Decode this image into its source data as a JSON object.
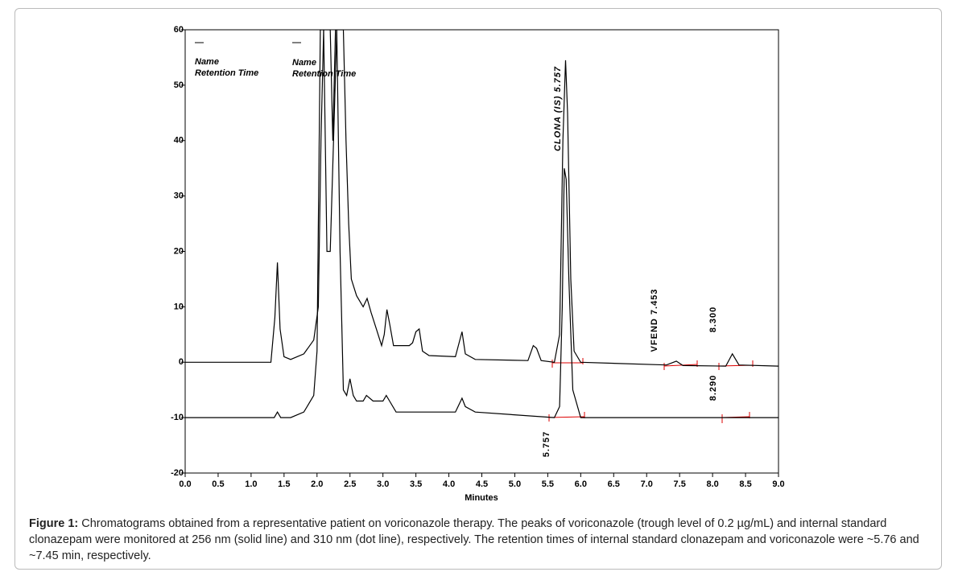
{
  "chart_data": {
    "type": "line",
    "xlabel": "Minutes",
    "xlim": [
      0,
      9
    ],
    "ylim": [
      -20,
      60
    ],
    "xticks": [
      {
        "value": 0,
        "label": "0.0"
      },
      0.5,
      {
        "value": 1,
        "label": "1.0"
      },
      1.5,
      {
        "value": 2,
        "label": "2.0"
      },
      2.5,
      {
        "value": 3,
        "label": "3.0"
      },
      3.5,
      {
        "value": 4,
        "label": "4.0"
      },
      4.5,
      {
        "value": 5,
        "label": "5.0"
      },
      5.5,
      {
        "value": 6,
        "label": "6.0"
      },
      6.5,
      {
        "value": 7,
        "label": "7.0"
      },
      7.5,
      {
        "value": 8,
        "label": "8.0"
      },
      8.5,
      {
        "value": 9,
        "label": "9.0"
      }
    ],
    "yticks": [
      -20,
      -10,
      0,
      10,
      20,
      30,
      40,
      50,
      60
    ],
    "series": [
      {
        "color": "#000000",
        "x": [
          0,
          1.3,
          1.36,
          1.4,
          1.44,
          1.5,
          1.6,
          1.8,
          1.95,
          2.02,
          2.06,
          2.1,
          2.14,
          2.2,
          2.24,
          2.28,
          2.32,
          2.4,
          2.44,
          2.48,
          2.52,
          2.6,
          2.7,
          2.76,
          2.82,
          2.9,
          2.98,
          3.02,
          3.06,
          3.1,
          3.16,
          3.3,
          3.4,
          3.45,
          3.5,
          3.55,
          3.6,
          3.7,
          4.1,
          4.2,
          4.25,
          4.4,
          5.2,
          5.28,
          5.33,
          5.4,
          5.6,
          5.68,
          5.73,
          5.77,
          5.8,
          5.85,
          5.9,
          6.0,
          7.3,
          7.45,
          7.55,
          8.2,
          8.3,
          8.4,
          9.0
        ],
        "values": [
          0,
          0,
          8,
          18,
          6,
          1,
          0.5,
          1.5,
          4,
          10,
          40,
          60,
          60,
          60,
          40,
          60,
          60,
          60,
          40,
          25,
          15,
          12,
          10,
          11.5,
          9,
          6,
          3,
          5,
          9.5,
          7,
          3,
          3,
          3,
          3.5,
          5.5,
          6,
          2,
          1.2,
          1,
          5.5,
          1.5,
          0.5,
          0.3,
          3,
          2.5,
          0.3,
          0,
          5,
          40,
          54.5,
          45,
          15,
          2,
          0,
          -0.5,
          0.2,
          -0.6,
          -0.7,
          1.5,
          -0.5,
          -0.7
        ]
      },
      {
        "color": "#000000",
        "x": [
          0,
          1.35,
          1.4,
          1.45,
          1.6,
          1.8,
          1.95,
          2.0,
          2.05,
          2.1,
          2.15,
          2.2,
          2.25,
          2.3,
          2.35,
          2.4,
          2.45,
          2.5,
          2.55,
          2.6,
          2.7,
          2.75,
          2.85,
          3.0,
          3.05,
          3.1,
          3.2,
          4.1,
          4.2,
          4.25,
          4.4,
          5.6,
          5.68,
          5.72,
          5.75,
          5.78,
          5.82,
          5.88,
          6.0,
          9.0
        ],
        "values": [
          -10,
          -10,
          -9,
          -10,
          -10,
          -9,
          -6,
          2,
          60,
          60,
          20,
          20,
          40,
          60,
          20,
          -5,
          -6,
          -3,
          -6,
          -7,
          -7,
          -6,
          -7,
          -7,
          -6,
          -7,
          -9,
          -9,
          -6.5,
          -8,
          -9,
          -10,
          -8,
          10,
          35,
          33,
          15,
          -5,
          -10,
          -10
        ]
      }
    ],
    "annotations": [
      {
        "text": "Name"
      },
      {
        "text": "Retention Time"
      },
      {
        "text": "Name"
      },
      {
        "text": "Retention Time"
      },
      {
        "text": "CLONA (IS) 5.757"
      },
      {
        "text": "VFEND 7.453"
      },
      {
        "text": "8.300"
      },
      {
        "text": "8.290"
      },
      {
        "text": "5.757"
      }
    ]
  },
  "caption": {
    "label": "Figure 1:",
    "text": "Chromatograms obtained from a representative patient on voriconazole therapy. The peaks of voriconazole (trough level of 0.2 µg/mL) and internal standard clonazepam were monitored at 256 nm (solid line) and 310 nm (dot line), respectively.  The retention times of internal standard clonazepam and voriconazole were ~5.76 and ~7.45 min, respectively."
  }
}
